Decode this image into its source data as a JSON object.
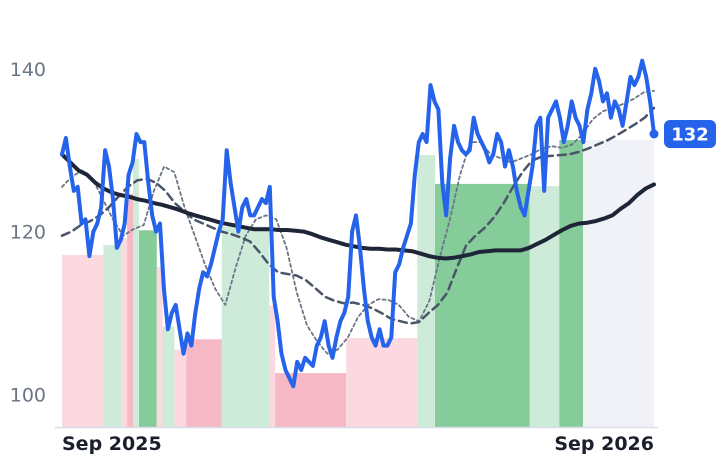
{
  "chart_data": {
    "type": "line",
    "x_tick_labels": [
      "Sep 2025",
      "Sep 2026"
    ],
    "y_ticks": [
      100,
      120,
      140
    ],
    "ylim": [
      96,
      146
    ],
    "last_value_label": "132",
    "colors": {
      "price": "#2563eb",
      "ma_long": "#1e2537",
      "ma_mid": "#4a5568",
      "ma_short": "#6b7585",
      "bullish_strong": "#5dbb7a",
      "bullish_light": "#c6e8d2",
      "bearish_strong": "#f4a0b3",
      "bearish_light": "#fbd1dc",
      "forecast": "#eef0f6"
    },
    "series": [
      {
        "role": "price",
        "values": [
          129.5,
          131.5,
          128,
          125,
          125.5,
          121,
          121.5,
          117,
          120,
          121,
          123,
          130,
          128,
          124,
          118,
          119,
          121,
          127,
          128.5,
          132,
          131,
          131,
          126,
          122,
          120,
          121,
          113,
          108,
          110,
          111,
          108,
          105,
          107.5,
          106,
          110,
          113,
          115,
          114.5,
          116,
          118,
          120,
          121.5,
          130,
          126,
          123,
          120,
          123,
          124,
          122,
          122,
          123,
          124,
          123.5,
          125.5,
          112,
          109,
          105,
          103,
          102,
          101,
          104,
          103,
          104.5,
          104,
          103.5,
          106,
          107,
          109,
          106,
          104.5,
          107,
          109,
          110,
          112,
          120,
          122,
          118,
          113,
          109,
          107,
          106,
          108,
          106,
          106,
          107,
          115,
          116,
          118,
          119.5,
          121,
          127,
          131,
          132,
          131,
          138,
          136,
          135,
          126,
          122,
          129,
          133,
          131,
          130,
          129.5,
          130,
          134,
          132,
          131,
          130,
          128.5,
          129.5,
          132,
          131,
          128,
          130,
          128,
          125,
          123,
          122,
          125,
          128,
          133,
          134,
          125,
          134,
          135,
          136,
          134,
          131,
          133,
          136,
          134,
          133,
          131,
          135,
          137,
          140,
          138.5,
          136,
          137,
          134,
          136,
          135,
          133,
          136,
          139,
          138,
          139,
          141,
          139,
          136,
          132
        ]
      },
      {
        "role": "ma_long",
        "values": [
          129.5,
          128.5,
          127.5,
          127,
          126,
          125.3,
          124.8,
          124.5,
          124.3,
          124,
          123.8,
          123.5,
          123.3,
          123,
          122.7,
          122.3,
          122,
          121.7,
          121.4,
          121.1,
          120.9,
          120.7,
          120.5,
          120.3,
          120.3,
          120.3,
          120.2,
          120.2,
          120.1,
          120,
          119.7,
          119.3,
          119,
          118.7,
          118.4,
          118.2,
          118,
          117.9,
          117.9,
          117.8,
          117.8,
          117.7,
          117.6,
          117.3,
          117,
          116.8,
          116.7,
          116.8,
          117,
          117.2,
          117.5,
          117.6,
          117.7,
          117.7,
          117.7,
          117.7,
          118,
          118.5,
          119,
          119.6,
          120.2,
          120.7,
          121,
          121.1,
          121.3,
          121.6,
          122,
          122.8,
          123.5,
          124.5,
          125.3,
          125.8
        ]
      },
      {
        "role": "ma_mid",
        "values": [
          119.5,
          120,
          120.8,
          121.3,
          122,
          123,
          124.3,
          125.5,
          126.3,
          126.5,
          126,
          125,
          123.5,
          122.5,
          121.5,
          121,
          120.5,
          120,
          119.7,
          119.3,
          118.8,
          117.5,
          116,
          115,
          114.8,
          114.6,
          114,
          113,
          112,
          111.5,
          111.2,
          111.3,
          111,
          110.6,
          110,
          109.3,
          109,
          108.7,
          108.9,
          110,
          111,
          112.5,
          115.5,
          118.3,
          119.5,
          120.5,
          121.8,
          123.5,
          125.5,
          127.3,
          128.7,
          129.2,
          129.3,
          129.4,
          129.5,
          129.8,
          130.2,
          130.7,
          131.2,
          131.8,
          132.5,
          133.2,
          134,
          135.2
        ]
      },
      {
        "role": "ma_short",
        "values": [
          125.5,
          126.8,
          127.5,
          126.5,
          124,
          121.5,
          119.5,
          120.3,
          120.8,
          125,
          128,
          127.3,
          123,
          119.5,
          116,
          113,
          111,
          115.5,
          119.5,
          121.5,
          122,
          121.5,
          118,
          112.5,
          108.5,
          106.5,
          105,
          105.5,
          107,
          109.5,
          111,
          111.7,
          111.6,
          111,
          109.5,
          109,
          111.5,
          116.8,
          121.5,
          127,
          131,
          131,
          129.5,
          129,
          128.5,
          129,
          129.5,
          130.2,
          130.5,
          130.3,
          130.7,
          132,
          133.8,
          134.8,
          135.2,
          135.7,
          136.3,
          137.1,
          137.3
        ]
      }
    ],
    "zones": [
      {
        "signal": "bearish-light",
        "end": 0.07
      },
      {
        "signal": "bullish-light",
        "end": 0.1
      },
      {
        "signal": "bearish-light",
        "end": 0.11
      },
      {
        "signal": "bearish-strong",
        "end": 0.12
      },
      {
        "signal": "bullish-light",
        "end": 0.13
      },
      {
        "signal": "bullish-strong",
        "end": 0.16
      },
      {
        "signal": "bearish-light",
        "end": 0.17
      },
      {
        "signal": "bullish-light",
        "end": 0.19
      },
      {
        "signal": "bearish-light",
        "end": 0.21
      },
      {
        "signal": "bearish-strong",
        "end": 0.27
      },
      {
        "signal": "bullish-light",
        "end": 0.35
      },
      {
        "signal": "bearish-light",
        "end": 0.36
      },
      {
        "signal": "bearish-strong",
        "end": 0.48
      },
      {
        "signal": "bearish-light",
        "end": 0.6
      },
      {
        "signal": "bullish-light",
        "end": 0.63
      },
      {
        "signal": "bullish-strong",
        "end": 0.79
      },
      {
        "signal": "bullish-light",
        "end": 0.84
      },
      {
        "signal": "bullish-strong",
        "end": 0.88
      },
      {
        "signal": "forecast",
        "end": 1.0
      }
    ]
  }
}
